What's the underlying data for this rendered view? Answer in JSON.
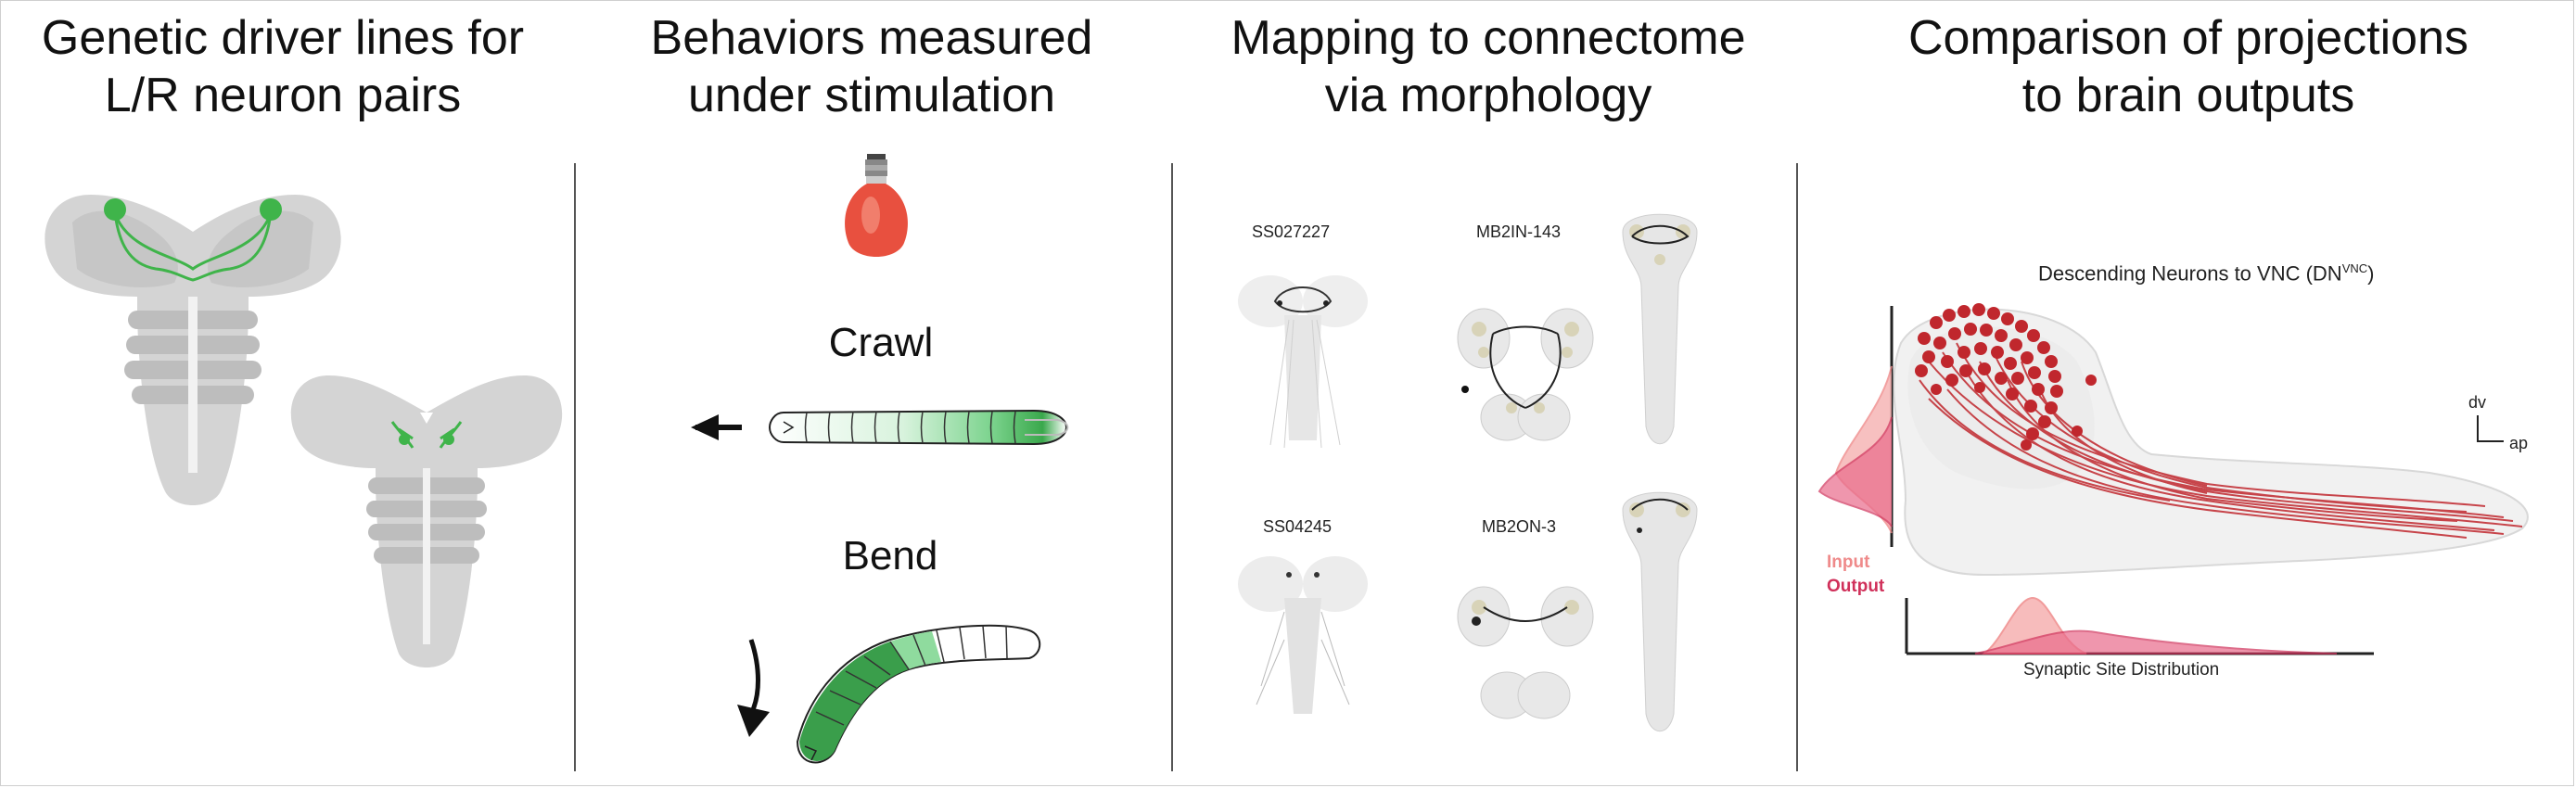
{
  "panels": [
    {
      "title_line1": "Genetic driver lines for",
      "title_line2": "L/R neuron pairs"
    },
    {
      "title_line1": "Behaviors measured",
      "title_line2": "under stimulation"
    },
    {
      "title_line1": "Mapping to connectome",
      "title_line2": "via morphology"
    },
    {
      "title_line1": "Comparison of projections",
      "title_line2": "to brain outputs"
    }
  ],
  "behaviors": {
    "crawl": "Crawl",
    "bend": "Bend"
  },
  "mapping": {
    "row1_driver": "SS027227",
    "row1_neuron": "MB2IN-143",
    "row2_driver": "SS04245",
    "row2_neuron": "MB2ON-3"
  },
  "projection_plot": {
    "title": "Descending Neurons to VNC (DN",
    "title_sup": "VNC",
    "title_end": ")",
    "legend_input": "Input",
    "legend_output": "Output",
    "xlabel": "Synaptic Site Distribution",
    "axis_dv": "dv",
    "axis_ap": "ap"
  },
  "colors": {
    "neuron_green": "#3fb44a",
    "tissue_gray": "#d4d4d4",
    "neuron_red": "#c0272d",
    "input_pink": "#ef8a8a",
    "output_crimson": "#d0305a",
    "bulb_red": "#e8503f"
  }
}
